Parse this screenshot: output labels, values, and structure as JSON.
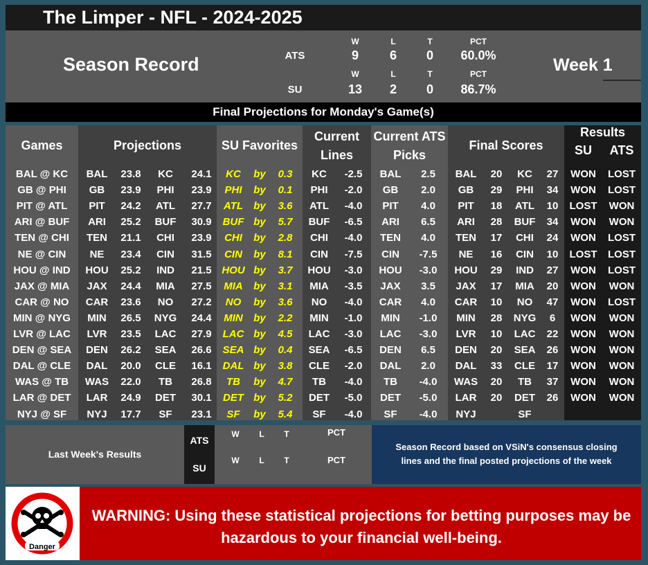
{
  "title": "The Limper - NFL - 2024-2025",
  "season_record": {
    "label": "Season Record",
    "week": "Week 1",
    "ats": {
      "label": "ATS",
      "w_h": "W",
      "l_h": "L",
      "t_h": "T",
      "pct_h": "PCT",
      "w": "9",
      "l": "6",
      "t": "0",
      "pct": "60.0%"
    },
    "su": {
      "label": "SU",
      "w_h": "W",
      "l_h": "L",
      "t_h": "T",
      "pct_h": "PCT",
      "w": "13",
      "l": "2",
      "t": "0",
      "pct": "86.7%"
    }
  },
  "banner": "Final Projections for Monday's Game(s)",
  "headers": {
    "games": "Games",
    "projections": "Projections",
    "su_favorites": "SU Favorites",
    "current_lines_1": "Current",
    "current_lines_2": "Lines",
    "ats_picks_1": "Current ATS",
    "ats_picks_2": "Picks",
    "final_scores": "Final Scores",
    "results": "Results",
    "su": "SU",
    "ats": "ATS"
  },
  "by_word": "by",
  "games": [
    {
      "game": "BAL @ KC",
      "p1": "BAL",
      "s1": "23.8",
      "p2": "KC",
      "s2": "24.1",
      "fav": "KC",
      "by": "0.3",
      "lt": "KC",
      "lv": "-2.5",
      "pt": "BAL",
      "pv": "2.5",
      "f1": "BAL",
      "fs1": "20",
      "f2": "KC",
      "fs2": "27",
      "su": "WON",
      "ats": "LOST"
    },
    {
      "game": "GB @ PHI",
      "p1": "GB",
      "s1": "23.9",
      "p2": "PHI",
      "s2": "23.9",
      "fav": "PHI",
      "by": "0.1",
      "lt": "PHI",
      "lv": "-2.0",
      "pt": "GB",
      "pv": "2.0",
      "f1": "GB",
      "fs1": "29",
      "f2": "PHI",
      "fs2": "34",
      "su": "WON",
      "ats": "LOST"
    },
    {
      "game": "PIT @ ATL",
      "p1": "PIT",
      "s1": "24.2",
      "p2": "ATL",
      "s2": "27.7",
      "fav": "ATL",
      "by": "3.6",
      "lt": "ATL",
      "lv": "-4.0",
      "pt": "PIT",
      "pv": "4.0",
      "f1": "PIT",
      "fs1": "18",
      "f2": "ATL",
      "fs2": "10",
      "su": "LOST",
      "ats": "WON"
    },
    {
      "game": "ARI @ BUF",
      "p1": "ARI",
      "s1": "25.2",
      "p2": "BUF",
      "s2": "30.9",
      "fav": "BUF",
      "by": "5.7",
      "lt": "BUF",
      "lv": "-6.5",
      "pt": "ARI",
      "pv": "6.5",
      "f1": "ARI",
      "fs1": "28",
      "f2": "BUF",
      "fs2": "34",
      "su": "WON",
      "ats": "WON"
    },
    {
      "game": "TEN @ CHI",
      "p1": "TEN",
      "s1": "21.1",
      "p2": "CHI",
      "s2": "23.9",
      "fav": "CHI",
      "by": "2.8",
      "lt": "CHI",
      "lv": "-4.0",
      "pt": "TEN",
      "pv": "4.0",
      "f1": "TEN",
      "fs1": "17",
      "f2": "CHI",
      "fs2": "24",
      "su": "WON",
      "ats": "LOST"
    },
    {
      "game": "NE @ CIN",
      "p1": "NE",
      "s1": "23.4",
      "p2": "CIN",
      "s2": "31.5",
      "fav": "CIN",
      "by": "8.1",
      "lt": "CIN",
      "lv": "-7.5",
      "pt": "CIN",
      "pv": "-7.5",
      "f1": "NE",
      "fs1": "16",
      "f2": "CIN",
      "fs2": "10",
      "su": "LOST",
      "ats": "LOST"
    },
    {
      "game": "HOU @ IND",
      "p1": "HOU",
      "s1": "25.2",
      "p2": "IND",
      "s2": "21.5",
      "fav": "HOU",
      "by": "3.7",
      "lt": "HOU",
      "lv": "-3.0",
      "pt": "HOU",
      "pv": "-3.0",
      "f1": "HOU",
      "fs1": "29",
      "f2": "IND",
      "fs2": "27",
      "su": "WON",
      "ats": "LOST"
    },
    {
      "game": "JAX @ MIA",
      "p1": "JAX",
      "s1": "24.4",
      "p2": "MIA",
      "s2": "27.5",
      "fav": "MIA",
      "by": "3.1",
      "lt": "MIA",
      "lv": "-3.5",
      "pt": "JAX",
      "pv": "3.5",
      "f1": "JAX",
      "fs1": "17",
      "f2": "MIA",
      "fs2": "20",
      "su": "WON",
      "ats": "WON"
    },
    {
      "game": "CAR @ NO",
      "p1": "CAR",
      "s1": "23.6",
      "p2": "NO",
      "s2": "27.2",
      "fav": "NO",
      "by": "3.6",
      "lt": "NO",
      "lv": "-4.0",
      "pt": "CAR",
      "pv": "4.0",
      "f1": "CAR",
      "fs1": "10",
      "f2": "NO",
      "fs2": "47",
      "su": "WON",
      "ats": "LOST"
    },
    {
      "game": "MIN @ NYG",
      "p1": "MIN",
      "s1": "26.5",
      "p2": "NYG",
      "s2": "24.4",
      "fav": "MIN",
      "by": "2.2",
      "lt": "MIN",
      "lv": "-1.0",
      "pt": "MIN",
      "pv": "-1.0",
      "f1": "MIN",
      "fs1": "28",
      "f2": "NYG",
      "fs2": "6",
      "su": "WON",
      "ats": "WON"
    },
    {
      "game": "LVR @ LAC",
      "p1": "LVR",
      "s1": "23.5",
      "p2": "LAC",
      "s2": "27.9",
      "fav": "LAC",
      "by": "4.5",
      "lt": "LAC",
      "lv": "-3.0",
      "pt": "LAC",
      "pv": "-3.0",
      "f1": "LVR",
      "fs1": "10",
      "f2": "LAC",
      "fs2": "22",
      "su": "WON",
      "ats": "WON"
    },
    {
      "game": "DEN @ SEA",
      "p1": "DEN",
      "s1": "26.2",
      "p2": "SEA",
      "s2": "26.6",
      "fav": "SEA",
      "by": "0.4",
      "lt": "SEA",
      "lv": "-6.5",
      "pt": "DEN",
      "pv": "6.5",
      "f1": "DEN",
      "fs1": "20",
      "f2": "SEA",
      "fs2": "26",
      "su": "WON",
      "ats": "WON"
    },
    {
      "game": "DAL @ CLE",
      "p1": "DAL",
      "s1": "20.0",
      "p2": "CLE",
      "s2": "16.1",
      "fav": "DAL",
      "by": "3.8",
      "lt": "CLE",
      "lv": "-2.0",
      "pt": "DAL",
      "pv": "2.0",
      "f1": "DAL",
      "fs1": "33",
      "f2": "CLE",
      "fs2": "17",
      "su": "WON",
      "ats": "WON"
    },
    {
      "game": "WAS @ TB",
      "p1": "WAS",
      "s1": "22.0",
      "p2": "TB",
      "s2": "26.8",
      "fav": "TB",
      "by": "4.7",
      "lt": "TB",
      "lv": "-4.0",
      "pt": "TB",
      "pv": "-4.0",
      "f1": "WAS",
      "fs1": "20",
      "f2": "TB",
      "fs2": "37",
      "su": "WON",
      "ats": "WON"
    },
    {
      "game": "LAR @ DET",
      "p1": "LAR",
      "s1": "24.9",
      "p2": "DET",
      "s2": "30.1",
      "fav": "DET",
      "by": "5.2",
      "lt": "DET",
      "lv": "-5.0",
      "pt": "DET",
      "pv": "-5.0",
      "f1": "LAR",
      "fs1": "20",
      "f2": "DET",
      "fs2": "26",
      "su": "WON",
      "ats": "WON"
    },
    {
      "game": "NYJ @ SF",
      "p1": "NYJ",
      "s1": "17.7",
      "p2": "SF",
      "s2": "23.1",
      "fav": "SF",
      "by": "5.4",
      "lt": "SF",
      "lv": "-4.0",
      "pt": "SF",
      "pv": "-4.0",
      "f1": "NYJ",
      "fs1": "",
      "f2": "SF",
      "fs2": "",
      "su": "",
      "ats": ""
    }
  ],
  "last_week": {
    "label": "Last Week's Results",
    "ats": "ATS",
    "su": "SU",
    "w": "W",
    "l": "L",
    "t": "T",
    "pct": "PCT"
  },
  "note_line1": "Season Record based on VSiN's consensus closing",
  "note_line2": "lines and the final posted projections of the week",
  "danger_label": "Danger",
  "warning_line1": "WARNING: Using these statistical projections for betting purposes may be",
  "warning_line2": "hazardous to your financial well-being."
}
